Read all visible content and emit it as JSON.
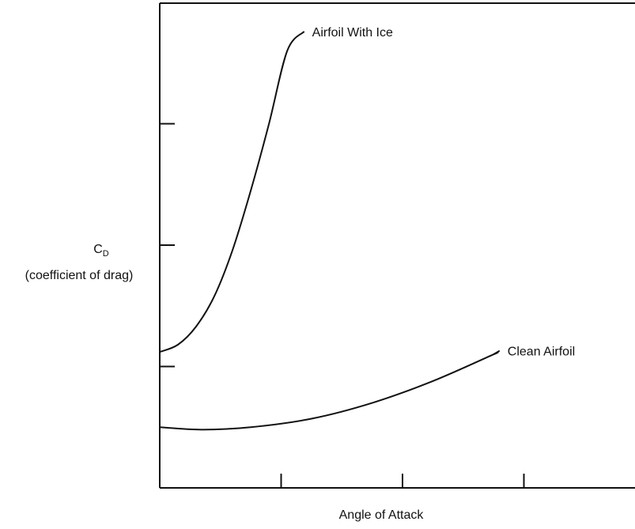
{
  "chart_data": {
    "type": "line",
    "title": "",
    "xlabel": "Angle of Attack",
    "ylabel": "C",
    "ylabel_subscript": "D",
    "ylabel_note": "(coefficient of drag)",
    "xlim": [
      0,
      4
    ],
    "ylim": [
      0,
      4
    ],
    "x_ticks": [
      1,
      2,
      3
    ],
    "y_ticks": [
      1,
      2,
      3
    ],
    "grid": false,
    "legend": "none",
    "line_color": "#111111",
    "series": [
      {
        "name": "Airfoil With Ice",
        "x": [
          0,
          0.15,
          0.3,
          0.45,
          0.6,
          0.75,
          0.9,
          1.05,
          1.19
        ],
        "y": [
          1.12,
          1.18,
          1.33,
          1.58,
          1.96,
          2.45,
          3.0,
          3.6,
          3.76
        ]
      },
      {
        "name": "Clean Airfoil",
        "x": [
          0,
          0.35,
          0.75,
          1.25,
          1.75,
          2.25,
          2.75,
          2.75,
          2.8
        ],
        "y": [
          0.5,
          0.48,
          0.5,
          0.57,
          0.7,
          0.88,
          1.1,
          1.1,
          1.13
        ]
      }
    ]
  }
}
